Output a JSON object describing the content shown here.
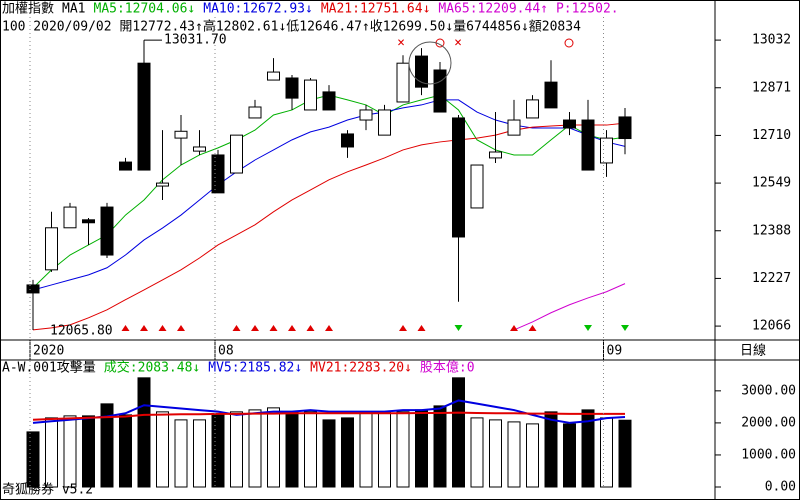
{
  "header": {
    "line1": [
      {
        "text": "加權指數",
        "color": "#000000"
      },
      {
        "text": "MA1",
        "color": "#000000"
      },
      {
        "text": "MA5:12704.06↓",
        "color": "#00b000"
      },
      {
        "text": "MA10:12672.93↓",
        "color": "#0000e0"
      },
      {
        "text": "MA21:12751.64↓",
        "color": "#e00000"
      },
      {
        "text": "MA65:12209.44↑",
        "color": "#d000d0"
      },
      {
        "text": "P:12502.",
        "color": "#d000d0"
      }
    ],
    "line2": "100 2020/09/02 開12772.43↑高12802.61↓低12646.47↑收12699.50↓量6744856↓額20834",
    "period": "日線",
    "footer": "奇狐勝券 v5.2"
  },
  "chart_data": [
    {
      "type": "candlestick",
      "categories": [
        "2020",
        null,
        null,
        null,
        null,
        null,
        null,
        null,
        null,
        null,
        "08",
        null,
        null,
        null,
        null,
        null,
        null,
        null,
        null,
        null,
        null,
        null,
        null,
        null,
        null,
        null,
        null,
        null,
        null,
        null,
        null,
        "09",
        null
      ],
      "open": [
        12205,
        12256,
        12398,
        12425,
        12468,
        12620,
        12954,
        12539,
        12701,
        12657,
        12644,
        12583,
        12769,
        12897,
        12904,
        12796,
        12857,
        12715,
        12762,
        12711,
        12823,
        12978,
        12931,
        12769,
        12465,
        12634,
        12711,
        12769,
        12890,
        12762,
        12762,
        12617,
        12772.43
      ],
      "high": [
        12222,
        12452,
        12482,
        12431,
        12482,
        12634,
        13031.7,
        12728,
        12779,
        12728,
        12661,
        12711,
        12830,
        12971,
        12914,
        12904,
        12880,
        12728,
        12813,
        12813,
        12981,
        13005,
        12958,
        12779,
        12610,
        12789,
        12830,
        12846,
        12964,
        12789,
        12830,
        12728,
        12802.61
      ],
      "low": [
        12161,
        12249,
        12398,
        12340,
        12296,
        12593,
        12593,
        12492,
        12610,
        12644,
        12516,
        12583,
        12769,
        12897,
        12796,
        12796,
        12796,
        12634,
        12728,
        12711,
        12823,
        12846,
        12789,
        12148,
        12465,
        12617,
        12711,
        12769,
        12803,
        12711,
        12593,
        12570,
        12646.47
      ],
      "close": [
        12178,
        12398,
        12468,
        12415,
        12306,
        12593,
        12593,
        12549,
        12724,
        12671,
        12516,
        12711,
        12806,
        12924,
        12836,
        12897,
        12796,
        12671,
        12796,
        12796,
        12954,
        12873,
        12789,
        12367,
        12610,
        12654,
        12762,
        12830,
        12803,
        12735,
        12593,
        12701,
        12699.5
      ],
      "series": [
        {
          "name": "MA5",
          "color": "#00b000",
          "values": [
            12195,
            12256,
            12306,
            12340,
            12374,
            12441,
            12492,
            12560,
            12610,
            12644,
            12668,
            12695,
            12728,
            12779,
            12796,
            12830,
            12846,
            12830,
            12813,
            12779,
            12813,
            12830,
            12846,
            12796,
            12695,
            12661,
            12644,
            12644,
            12695,
            12745,
            12711,
            12695,
            12704.06
          ]
        },
        {
          "name": "MA10",
          "color": "#0000e0",
          "values": [
            12188,
            12205,
            12222,
            12239,
            12263,
            12306,
            12357,
            12397,
            12441,
            12492,
            12543,
            12587,
            12627,
            12661,
            12695,
            12722,
            12738,
            12762,
            12779,
            12789,
            12803,
            12813,
            12830,
            12830,
            12789,
            12762,
            12745,
            12735,
            12735,
            12735,
            12711,
            12688,
            12672.93
          ]
        },
        {
          "name": "MA21",
          "color": "#e00000",
          "values": [
            12053,
            12060,
            12070,
            12094,
            12121,
            12155,
            12188,
            12222,
            12256,
            12296,
            12340,
            12374,
            12408,
            12452,
            12492,
            12526,
            12560,
            12587,
            12610,
            12634,
            12661,
            12678,
            12688,
            12695,
            12701,
            12711,
            12728,
            12738,
            12742,
            12745,
            12745,
            12745,
            12751.64
          ]
        },
        {
          "name": "MA65",
          "color": "#d000d0",
          "values": [
            null,
            null,
            null,
            null,
            null,
            null,
            null,
            null,
            null,
            null,
            null,
            null,
            null,
            null,
            null,
            null,
            null,
            null,
            null,
            null,
            null,
            null,
            null,
            null,
            null,
            null,
            12053,
            12080,
            12111,
            12138,
            12161,
            12182,
            12209.44
          ]
        }
      ],
      "ylim": [
        12019,
        13110
      ],
      "yticks": [
        12066,
        12227,
        12388,
        12549,
        12710,
        12871,
        13032
      ],
      "annotations": [
        "13031.70",
        "12065.80"
      ]
    },
    {
      "type": "bar",
      "header": [
        {
          "text": "A-W.001攻擊量",
          "color": "#000000"
        },
        {
          "text": "成交:2083.48↓",
          "color": "#00b000"
        },
        {
          "text": "MV5:2185.82↓",
          "color": "#0000e0"
        },
        {
          "text": "MV21:2283.20↓",
          "color": "#e00000"
        },
        {
          "text": "股本億:0",
          "color": "#d000d0"
        }
      ],
      "values": [
        1719,
        2156,
        2219,
        2219,
        2594,
        2250,
        3406,
        2344,
        2094,
        2094,
        2250,
        2344,
        2406,
        2469,
        2344,
        2344,
        2094,
        2156,
        2344,
        2344,
        2344,
        2406,
        2531,
        3406,
        2156,
        2094,
        2031,
        1969,
        2344,
        1969,
        2406,
        2156,
        2083.48
      ],
      "series": [
        {
          "name": "MV5",
          "color": "#0000e0",
          "values": [
            2000,
            2050,
            2100,
            2150,
            2200,
            2300,
            2550,
            2500,
            2450,
            2400,
            2350,
            2250,
            2300,
            2350,
            2350,
            2400,
            2350,
            2350,
            2350,
            2350,
            2400,
            2400,
            2450,
            2700,
            2600,
            2500,
            2400,
            2250,
            2100,
            2000,
            2050,
            2150,
            2185.82
          ]
        },
        {
          "name": "MV21",
          "color": "#e00000",
          "values": [
            2100,
            2120,
            2140,
            2160,
            2180,
            2200,
            2250,
            2260,
            2270,
            2270,
            2280,
            2280,
            2290,
            2290,
            2300,
            2300,
            2300,
            2300,
            2300,
            2300,
            2300,
            2310,
            2310,
            2320,
            2310,
            2300,
            2300,
            2290,
            2290,
            2280,
            2280,
            2280,
            2283.2
          ]
        }
      ],
      "ylim": [
        0,
        3900
      ],
      "yticks": [
        {
          "value": 0,
          "label": "0.00"
        },
        {
          "value": 1000,
          "label": "1000.00"
        },
        {
          "value": 2000,
          "label": "2000.00"
        },
        {
          "value": 3000,
          "label": "3000.00"
        }
      ]
    }
  ]
}
